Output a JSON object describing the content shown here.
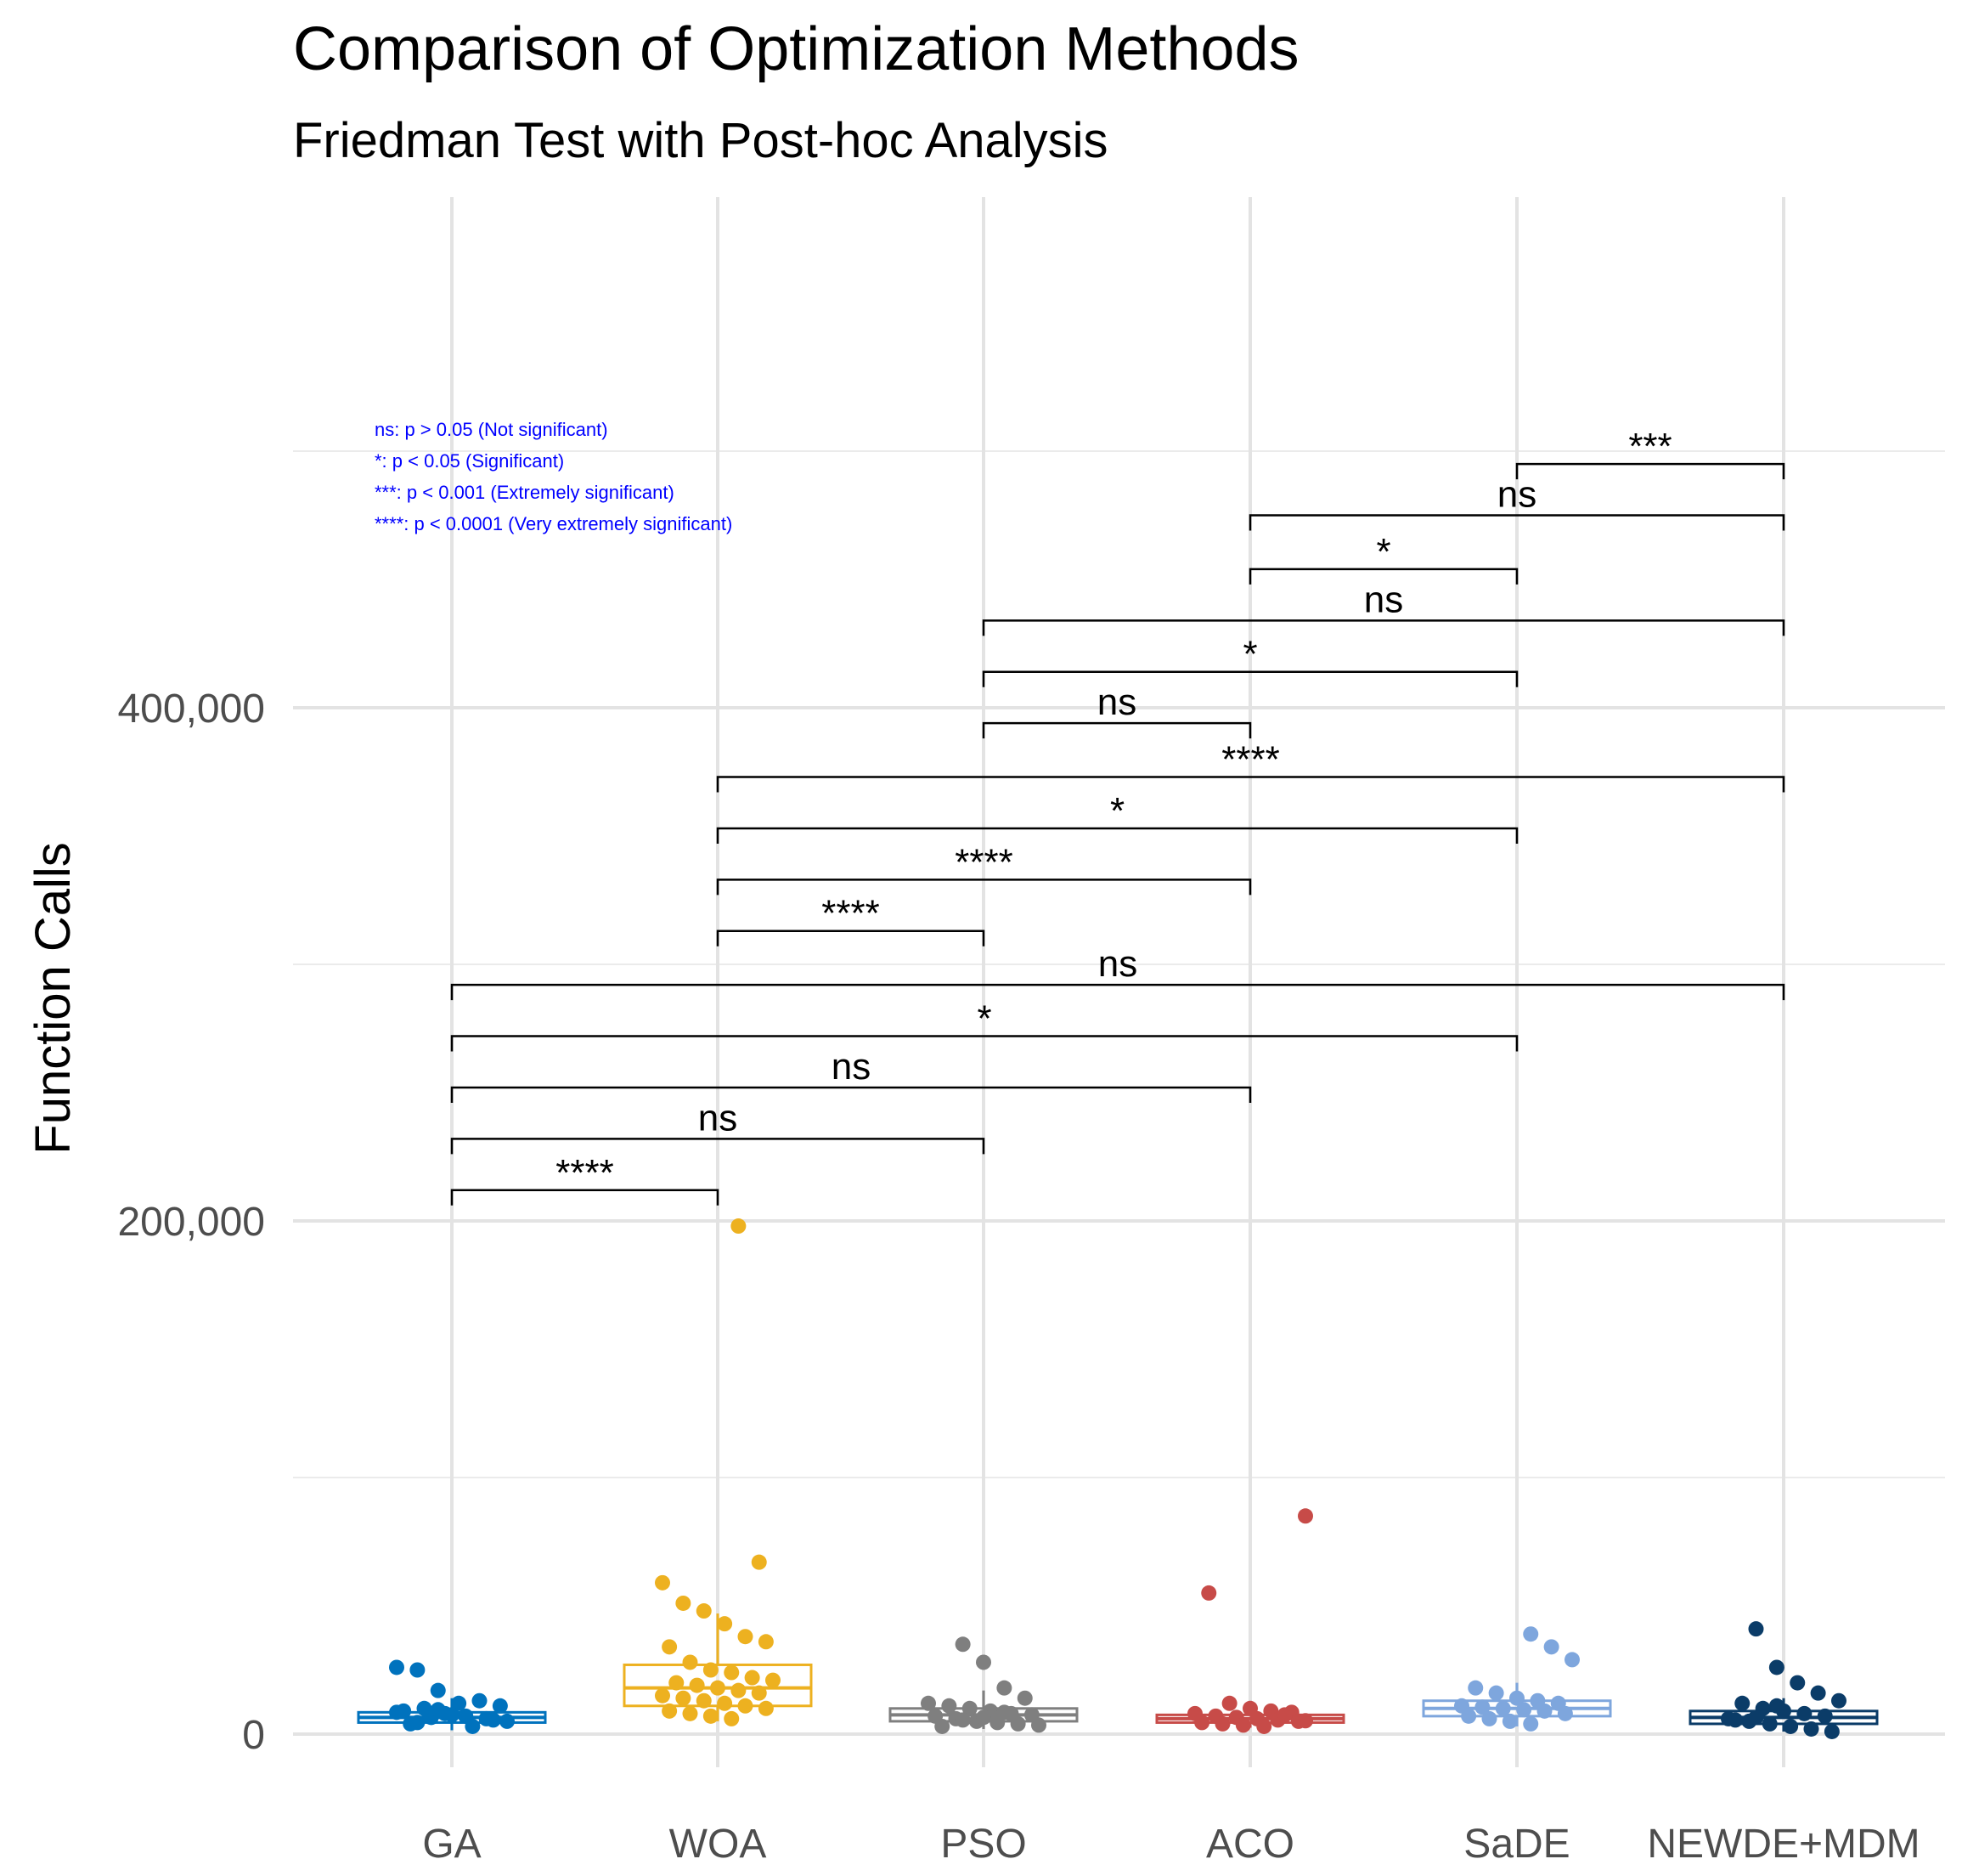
{
  "chart_data": {
    "type": "boxplot",
    "title": "Comparison of Optimization Methods",
    "subtitle": "Friedman Test with Post-hoc Analysis",
    "xlabel": "",
    "ylabel": "Function Calls",
    "ylim": [
      -10000,
      600000
    ],
    "y_ticks": [
      0,
      200000,
      400000
    ],
    "y_tick_labels": [
      "0",
      "200,000",
      "400,000"
    ],
    "categories": [
      "GA",
      "WOA",
      "PSO",
      "ACO",
      "SaDE",
      "NEWDE+MDM"
    ],
    "colors": [
      "#0072BD",
      "#EDB120",
      "#7F7F7F",
      "#C74B48",
      "#7EA6DD",
      "#0B3C68"
    ],
    "boxes": [
      {
        "q1": 4500,
        "median": 6500,
        "q3": 8500,
        "whisker_low": 1500,
        "whisker_high": 14000
      },
      {
        "q1": 11000,
        "median": 18000,
        "q3": 27000,
        "whisker_low": 5000,
        "whisker_high": 47000
      },
      {
        "q1": 5000,
        "median": 7500,
        "q3": 10000,
        "whisker_low": 2000,
        "whisker_high": 17000
      },
      {
        "q1": 4500,
        "median": 6000,
        "q3": 7500,
        "whisker_low": 2500,
        "whisker_high": 11000
      },
      {
        "q1": 7000,
        "median": 10000,
        "q3": 13000,
        "whisker_low": 3000,
        "whisker_high": 20000
      },
      {
        "q1": 4000,
        "median": 6500,
        "q3": 9000,
        "whisker_low": 1000,
        "whisker_high": 14000
      }
    ],
    "points": [
      [
        26000,
        25000,
        17000,
        12000,
        13000,
        11000,
        9000,
        10000,
        8000,
        7000,
        6000,
        5000,
        4000,
        6500,
        7500,
        3000,
        5500,
        8500,
        4500,
        9500
      ],
      [
        198000,
        67000,
        59000,
        51000,
        48000,
        43000,
        38000,
        36000,
        34000,
        28000,
        25000,
        24000,
        22000,
        21000,
        20000,
        19000,
        18000,
        17000,
        16000,
        15000,
        14000,
        13000,
        12000,
        11000,
        10000,
        9000,
        8000,
        7000,
        6000
      ],
      [
        35000,
        28000,
        18000,
        14000,
        12000,
        11000,
        10000,
        9000,
        8000,
        7500,
        7000,
        6000,
        5000,
        4500,
        4000,
        3500,
        3000,
        5500,
        6500,
        8500
      ],
      [
        85000,
        55000,
        12000,
        10000,
        9000,
        8500,
        8000,
        7000,
        6500,
        6000,
        5500,
        5000,
        4500,
        4000,
        3500,
        3000,
        7500,
        5200
      ],
      [
        39000,
        34000,
        29000,
        18000,
        16000,
        14000,
        13000,
        12000,
        11000,
        10500,
        10000,
        9500,
        9000,
        8000,
        7000,
        6000,
        5000,
        4000
      ],
      [
        41000,
        26000,
        20000,
        16000,
        13000,
        12000,
        10000,
        9000,
        8000,
        7000,
        6000,
        5000,
        4000,
        3000,
        2000,
        1000,
        5500,
        6500,
        11000
      ]
    ],
    "comparisons": [
      {
        "from": 0,
        "to": 1,
        "y": 212000,
        "label": "****"
      },
      {
        "from": 0,
        "to": 2,
        "y": 232000,
        "label": "ns"
      },
      {
        "from": 0,
        "to": 3,
        "y": 252000,
        "label": "ns"
      },
      {
        "from": 0,
        "to": 4,
        "y": 272000,
        "label": "*"
      },
      {
        "from": 0,
        "to": 5,
        "y": 292000,
        "label": "ns"
      },
      {
        "from": 1,
        "to": 2,
        "y": 313000,
        "label": "****"
      },
      {
        "from": 1,
        "to": 3,
        "y": 333000,
        "label": "****"
      },
      {
        "from": 1,
        "to": 4,
        "y": 353000,
        "label": "*"
      },
      {
        "from": 1,
        "to": 5,
        "y": 373000,
        "label": "****"
      },
      {
        "from": 2,
        "to": 3,
        "y": 394000,
        "label": "ns"
      },
      {
        "from": 2,
        "to": 4,
        "y": 414000,
        "label": "*"
      },
      {
        "from": 2,
        "to": 5,
        "y": 434000,
        "label": "ns"
      },
      {
        "from": 3,
        "to": 4,
        "y": 454000,
        "label": "*"
      },
      {
        "from": 3,
        "to": 5,
        "y": 475000,
        "label": "ns"
      },
      {
        "from": 4,
        "to": 5,
        "y": 495000,
        "label": "***"
      }
    ],
    "legend_notes": [
      "ns: p > 0.05 (Not significant)",
      "*: p < 0.05 (Significant)",
      "***: p < 0.001 (Extremely significant)",
      "****: p < 0.0001  (Very extremely significant)"
    ],
    "legend_position": "top-left"
  }
}
